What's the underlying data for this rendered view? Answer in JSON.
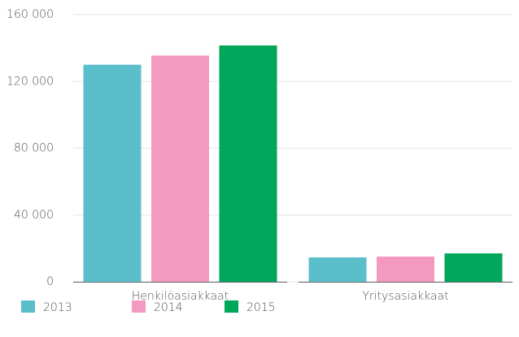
{
  "chart_data": {
    "type": "bar",
    "categories": [
      "Henkilöasiakkaat",
      "Yritysasiakkaat"
    ],
    "series": [
      {
        "name": "2013",
        "color": "#5bbfcb",
        "values": [
          130000,
          14600
        ]
      },
      {
        "name": "2014",
        "color": "#f49ac1",
        "values": [
          135500,
          15100
        ]
      },
      {
        "name": "2015",
        "color": "#00a65a",
        "values": [
          141500,
          17000
        ]
      }
    ],
    "ylim": [
      0,
      160000
    ],
    "yticks": [
      0,
      {
        "value": 40000,
        "label": "40 000"
      },
      {
        "value": 80000,
        "label": "80 000"
      },
      {
        "value": 120000,
        "label": "120 000"
      },
      {
        "value": 160000,
        "label": "160 000"
      }
    ],
    "grid": true,
    "legend": "bottom"
  }
}
